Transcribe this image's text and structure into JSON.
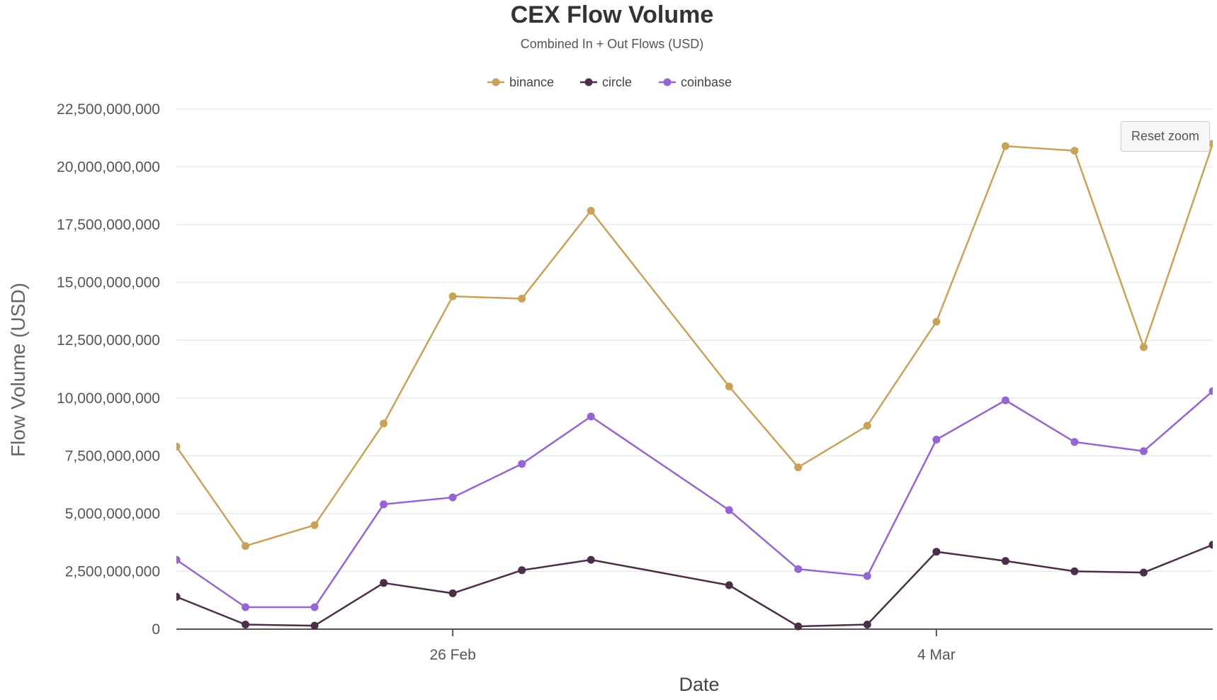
{
  "chart_data": {
    "type": "line",
    "title": "CEX Flow Volume",
    "subtitle": "Combined In + Out Flows (USD)",
    "xlabel": "Date",
    "ylabel": "Flow Volume (USD)",
    "ylim": [
      0,
      22500000000
    ],
    "yticks": [
      {
        "value": 0,
        "label": "0"
      },
      {
        "value": 2500000000,
        "label": "2,500,000,000"
      },
      {
        "value": 5000000000,
        "label": "5,000,000,000"
      },
      {
        "value": 7500000000,
        "label": "7,500,000,000"
      },
      {
        "value": 10000000000,
        "label": "10,000,000,000"
      },
      {
        "value": 12500000000,
        "label": "12,500,000,000"
      },
      {
        "value": 15000000000,
        "label": "15,000,000,000"
      },
      {
        "value": 17500000000,
        "label": "17,500,000,000"
      },
      {
        "value": 20000000000,
        "label": "20,000,000,000"
      },
      {
        "value": 22500000000,
        "label": "22,500,000,000"
      }
    ],
    "x": [
      "Feb 22",
      "Feb 23",
      "Feb 24",
      "Feb 25",
      "Feb 26",
      "Feb 27",
      "Feb 28",
      "Mar 1",
      "Mar 2",
      "Mar 3",
      "Mar 4",
      "Mar 5",
      "Mar 6",
      "Mar 7",
      "Mar 8"
    ],
    "xlim": [
      "Feb 22 12:00",
      "Mar 8 12:00"
    ],
    "xticks": [
      {
        "value": "Feb 26 12:00",
        "label": "26 Feb"
      },
      {
        "value": "Mar 4 12:00",
        "label": "4 Mar"
      }
    ],
    "legend_position": "top-center",
    "grid": true,
    "series": [
      {
        "name": "binance",
        "color": "#c9a25a",
        "values": [
          7900000000,
          3600000000,
          4500000000,
          8900000000,
          14400000000,
          14300000000,
          18100000000,
          10500000000,
          7000000000,
          8800000000,
          13300000000,
          20900000000,
          20700000000,
          12200000000,
          21000000000
        ]
      },
      {
        "name": "circle",
        "color": "#4b2e48",
        "values": [
          1400000000,
          200000000,
          150000000,
          2000000000,
          1550000000,
          2550000000,
          3000000000,
          1900000000,
          120000000,
          200000000,
          3350000000,
          2950000000,
          2500000000,
          2450000000,
          3650000000
        ]
      },
      {
        "name": "coinbase",
        "color": "#9565d3",
        "values": [
          3000000000,
          950000000,
          950000000,
          5400000000,
          5700000000,
          7150000000,
          9200000000,
          5150000000,
          2600000000,
          2300000000,
          8200000000,
          9900000000,
          8100000000,
          7700000000,
          10300000000
        ]
      }
    ]
  },
  "controls": {
    "reset_zoom_label": "Reset zoom"
  }
}
